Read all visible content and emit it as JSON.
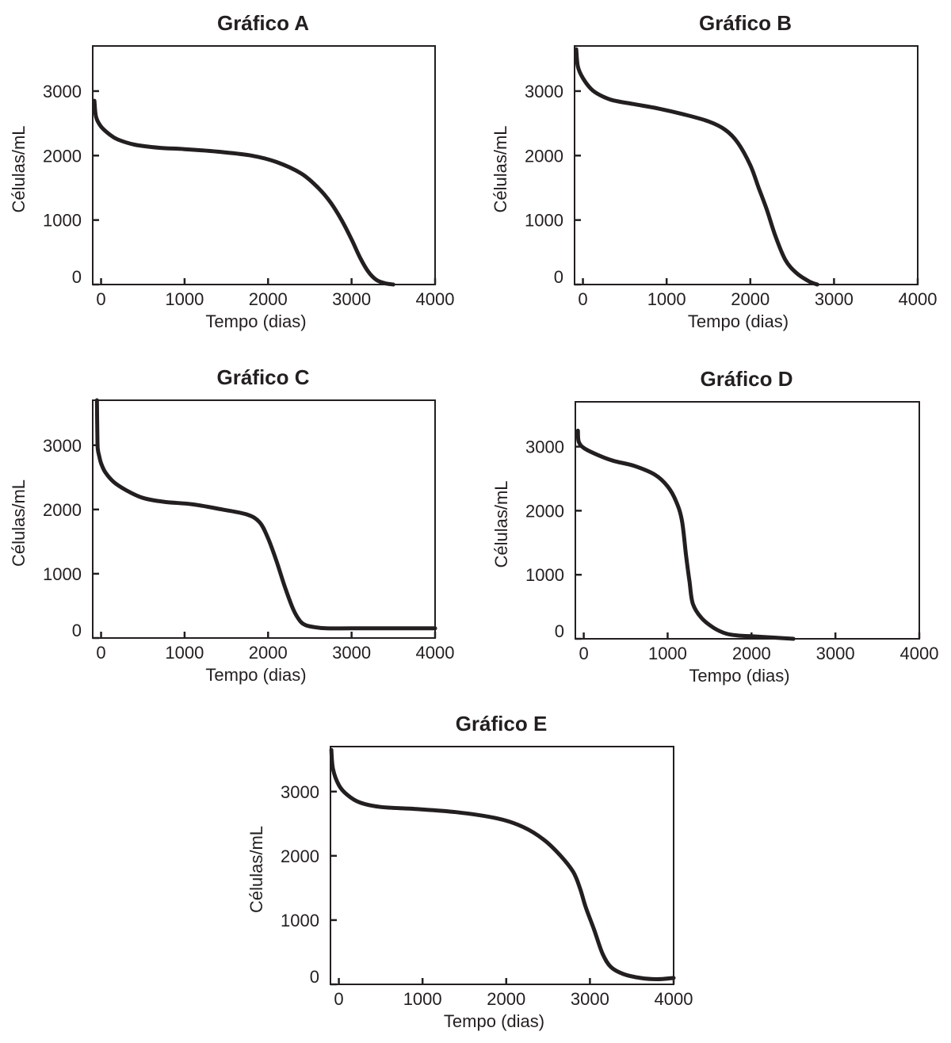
{
  "chart_data": [
    {
      "type": "line",
      "title": "Gráfico A",
      "xlabel": "Tempo (dias)",
      "ylabel": "Células/mL",
      "xlim": [
        -100,
        4000
      ],
      "ylim": [
        0,
        3700
      ],
      "xticks": [
        0,
        1000,
        2000,
        3000,
        4000
      ],
      "yticks": [
        0,
        1000,
        2000,
        3000
      ],
      "xtick_labels": [
        "0",
        "1000",
        "2000",
        "3000",
        "4000"
      ],
      "ytick_labels": [
        "0",
        "1000",
        "2000",
        "3000"
      ],
      "grid": false,
      "series": [
        {
          "x": [
            -80,
            -60,
            0,
            100,
            200,
            400,
            700,
            1000,
            1400,
            1800,
            2100,
            2400,
            2600,
            2750,
            2880,
            3000,
            3100,
            3200,
            3300,
            3400,
            3500
          ],
          "y": [
            2850,
            2600,
            2450,
            2330,
            2250,
            2170,
            2120,
            2100,
            2060,
            2000,
            1900,
            1720,
            1500,
            1270,
            1000,
            700,
            420,
            200,
            70,
            20,
            0
          ]
        }
      ]
    },
    {
      "type": "line",
      "title": "Gráfico B",
      "xlabel": "Tempo (dias)",
      "ylabel": "Células/mL",
      "xlim": [
        -100,
        4000
      ],
      "ylim": [
        0,
        3700
      ],
      "xticks": [
        0,
        1000,
        2000,
        3000,
        4000
      ],
      "yticks": [
        0,
        1000,
        2000,
        3000
      ],
      "xtick_labels": [
        "0",
        "1000",
        "2000",
        "3000",
        "4000"
      ],
      "ytick_labels": [
        "0",
        "1000",
        "2000",
        "3000"
      ],
      "grid": false,
      "series": [
        {
          "x": [
            -80,
            -60,
            0,
            100,
            200,
            350,
            600,
            900,
            1200,
            1500,
            1700,
            1850,
            2000,
            2100,
            2200,
            2300,
            2420,
            2550,
            2700,
            2800
          ],
          "y": [
            3650,
            3380,
            3200,
            3030,
            2940,
            2860,
            2800,
            2730,
            2640,
            2530,
            2400,
            2200,
            1850,
            1500,
            1150,
            750,
            380,
            180,
            50,
            0
          ]
        }
      ]
    },
    {
      "type": "line",
      "title": "Gráfico C",
      "xlabel": "Tempo (dias)",
      "ylabel": "Células/mL",
      "xlim": [
        -100,
        4000
      ],
      "ylim": [
        0,
        3700
      ],
      "xticks": [
        0,
        1000,
        2000,
        3000,
        4000
      ],
      "yticks": [
        0,
        1000,
        2000,
        3000
      ],
      "xtick_labels": [
        "0",
        "1000",
        "2000",
        "3000",
        "4000"
      ],
      "ytick_labels": [
        "0",
        "1000",
        "2000",
        "3000"
      ],
      "grid": false,
      "series": [
        {
          "x": [
            -50,
            -45,
            -40,
            -20,
            0,
            50,
            150,
            300,
            500,
            750,
            1100,
            1450,
            1750,
            1900,
            2000,
            2100,
            2200,
            2300,
            2380,
            2450,
            2550,
            2700,
            3000,
            3500,
            4000
          ],
          "y": [
            3700,
            3200,
            2950,
            2820,
            2720,
            2580,
            2430,
            2300,
            2180,
            2120,
            2080,
            2000,
            1920,
            1800,
            1550,
            1200,
            800,
            450,
            270,
            200,
            170,
            150,
            150,
            150,
            150
          ]
        }
      ]
    },
    {
      "type": "line",
      "title": "Gráfico D",
      "xlabel": "Tempo (dias)",
      "ylabel": "Células/mL",
      "xlim": [
        -100,
        4000
      ],
      "ylim": [
        0,
        3700
      ],
      "xticks": [
        0,
        1000,
        2000,
        3000,
        4000
      ],
      "yticks": [
        0,
        1000,
        2000,
        3000
      ],
      "xtick_labels": [
        "0",
        "1000",
        "2000",
        "3000",
        "4000"
      ],
      "ytick_labels": [
        "0",
        "1000",
        "2000",
        "3000"
      ],
      "grid": false,
      "series": [
        {
          "x": [
            -70,
            -60,
            0,
            150,
            350,
            600,
            850,
            1000,
            1100,
            1170,
            1220,
            1260,
            1300,
            1400,
            1550,
            1700,
            1850,
            2000,
            2250,
            2500
          ],
          "y": [
            3250,
            3080,
            2980,
            2880,
            2780,
            2700,
            2560,
            2380,
            2150,
            1850,
            1300,
            900,
            550,
            330,
            170,
            80,
            50,
            40,
            20,
            0
          ]
        }
      ]
    },
    {
      "type": "line",
      "title": "Gráfico E",
      "xlabel": "Tempo (dias)",
      "ylabel": "Células/mL",
      "xlim": [
        -100,
        4000
      ],
      "ylim": [
        0,
        3700
      ],
      "xticks": [
        0,
        1000,
        2000,
        3000,
        4000
      ],
      "yticks": [
        0,
        1000,
        2000,
        3000
      ],
      "xtick_labels": [
        "0",
        "1000",
        "2000",
        "3000",
        "4000"
      ],
      "ytick_labels": [
        "0",
        "1000",
        "2000",
        "3000"
      ],
      "grid": false,
      "series": [
        {
          "x": [
            -90,
            -70,
            0,
            100,
            250,
            500,
            900,
            1400,
            1900,
            2200,
            2450,
            2650,
            2800,
            2880,
            2950,
            3050,
            3150,
            3250,
            3400,
            3600,
            3800,
            4000
          ],
          "y": [
            3650,
            3350,
            3100,
            2950,
            2830,
            2760,
            2730,
            2680,
            2580,
            2450,
            2250,
            2000,
            1750,
            1500,
            1200,
            850,
            480,
            270,
            160,
            100,
            80,
            100
          ]
        }
      ]
    }
  ]
}
